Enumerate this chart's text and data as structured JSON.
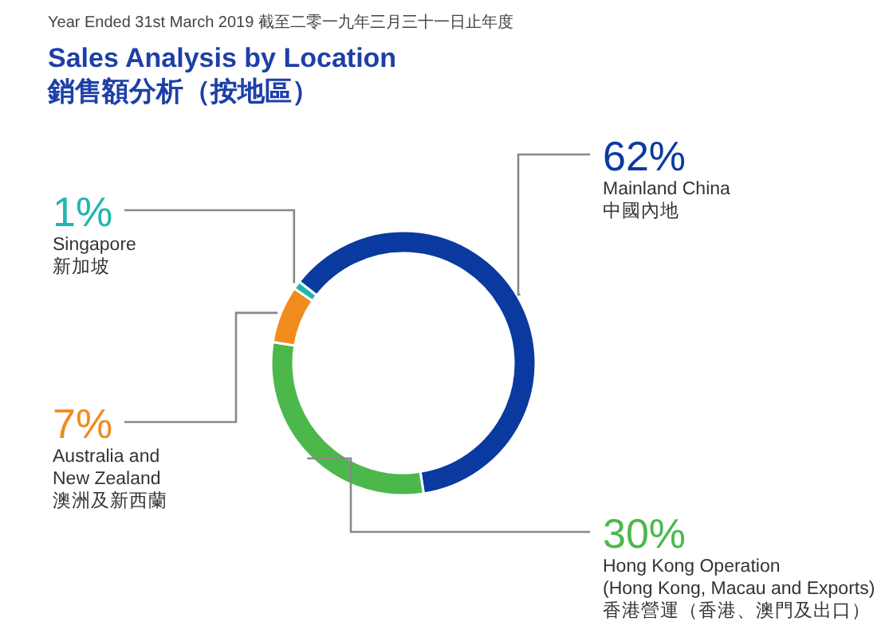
{
  "chart_data": {
    "type": "donut",
    "title": "Sales Analysis by Location\n銷售額分析（按地區）",
    "subtitle": "Year Ended 31st March 2019 截至二零一九年三月三十一日止年度",
    "categories": [
      "Mainland China\n中國內地",
      "Hong Kong Operation\n(Hong Kong, Macau and Exports)\n香港營運（香港、澳門及出口）",
      "Australia and\nNew Zealand\n澳洲及新西蘭",
      "Singapore\n新加坡"
    ],
    "values": [
      62,
      30,
      7,
      1
    ],
    "value_labels": [
      "62%",
      "30%",
      "7%",
      "1%"
    ],
    "colors": [
      "#0a3aa0",
      "#4cb84c",
      "#f08c1e",
      "#22b5b0"
    ],
    "legend": false
  }
}
